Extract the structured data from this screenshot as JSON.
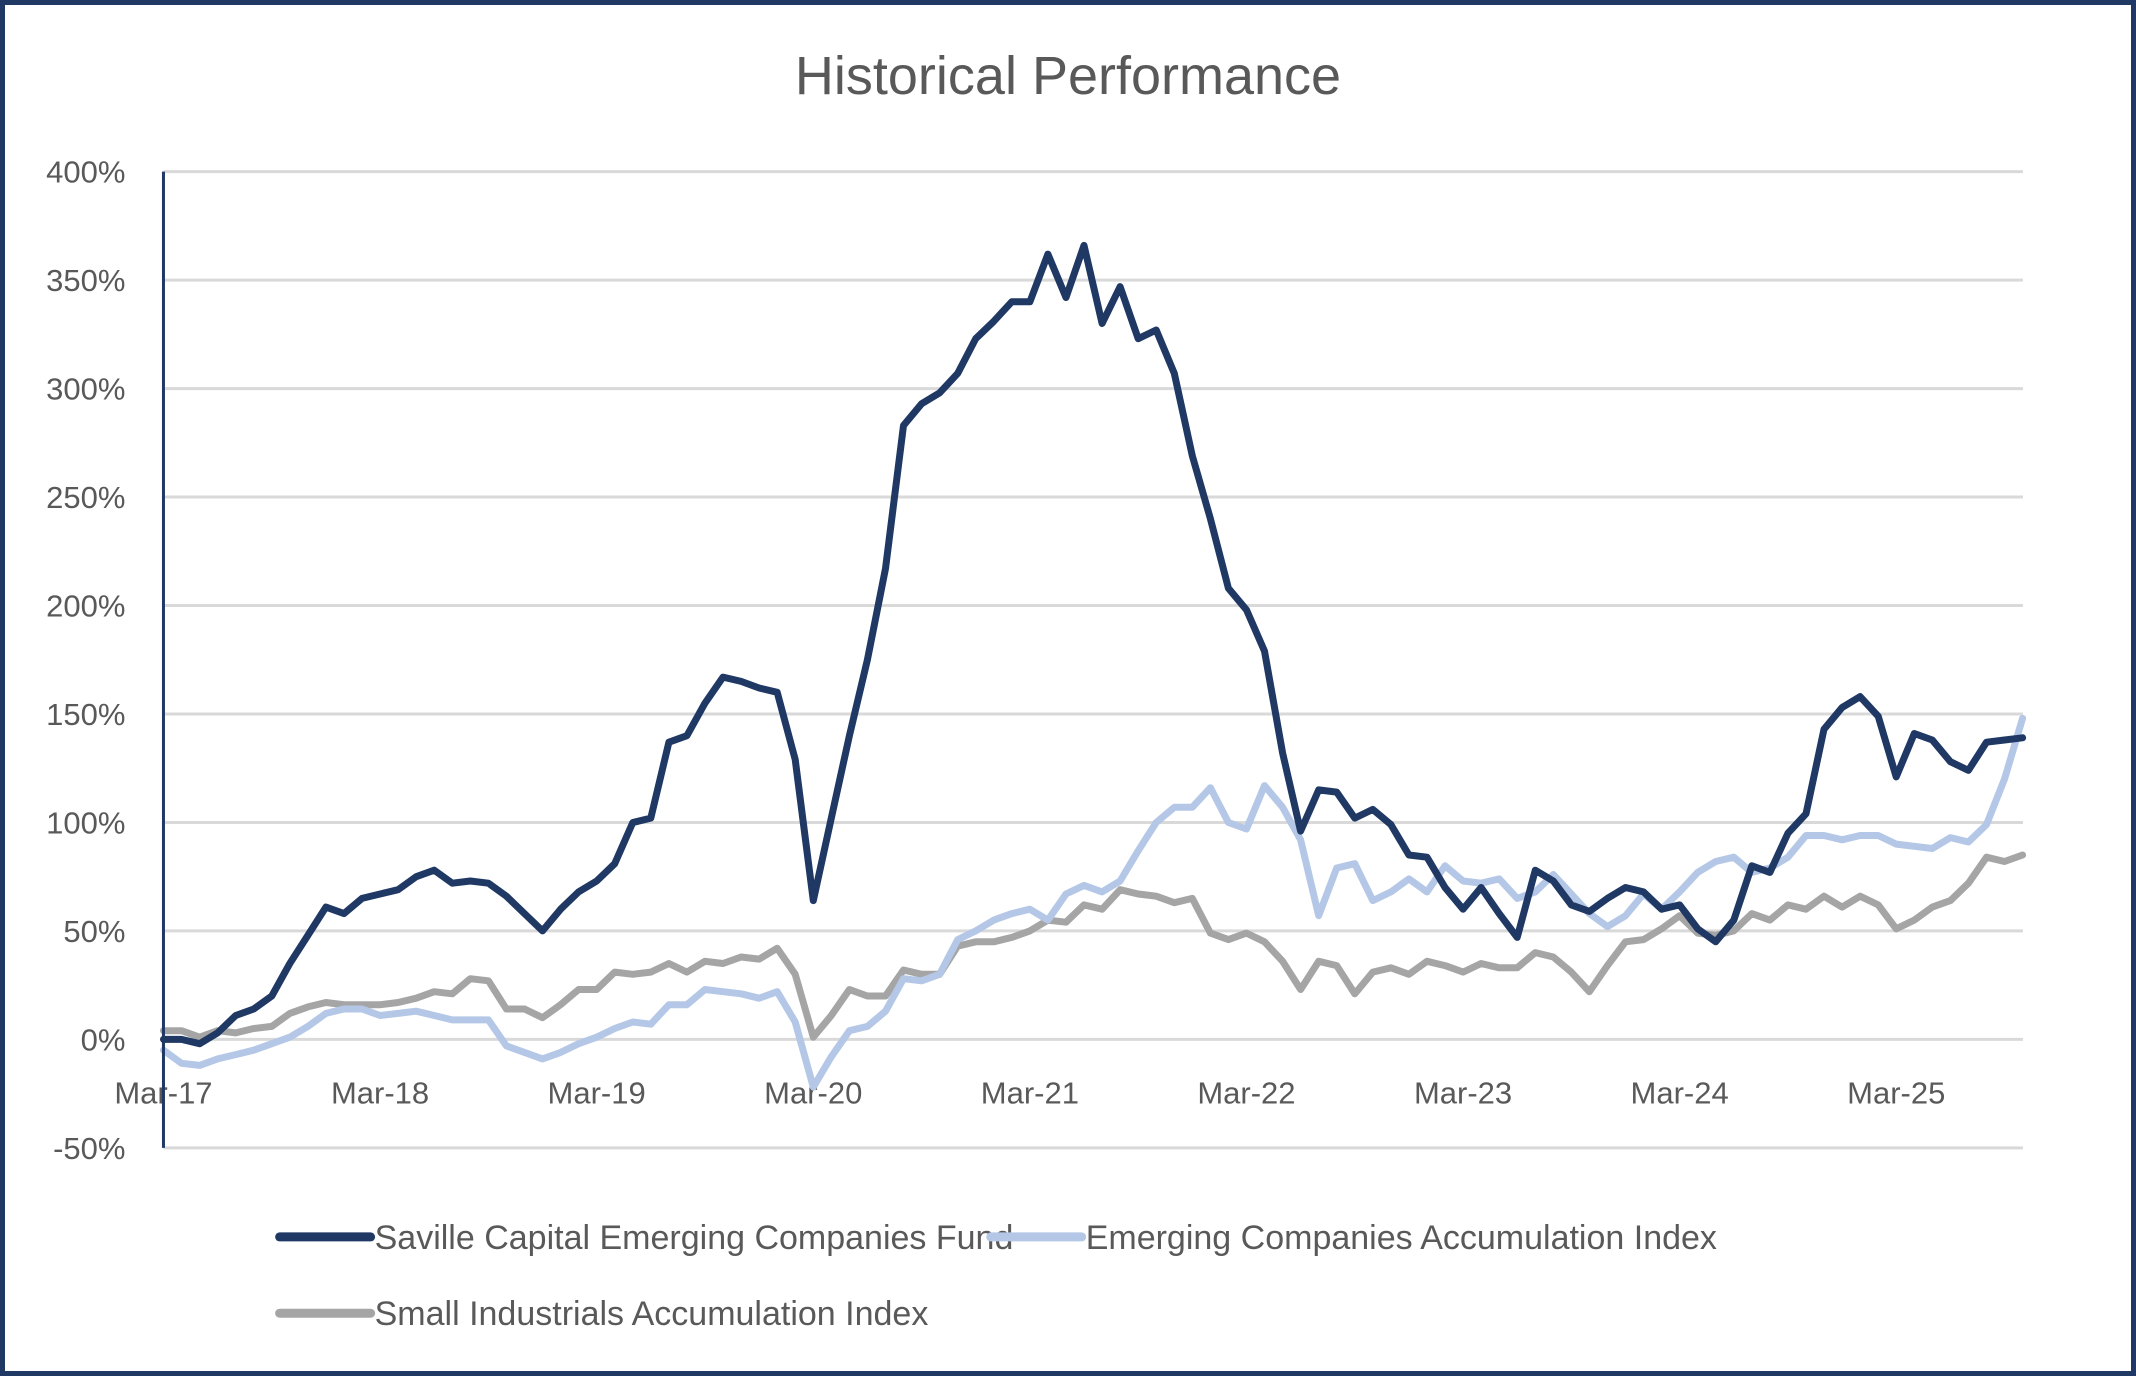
{
  "chart_data": {
    "type": "line",
    "title": "Historical Performance",
    "xlabel": "",
    "ylabel": "",
    "ylim": [
      -50,
      400
    ],
    "yticks": [
      -50,
      0,
      50,
      100,
      150,
      200,
      250,
      300,
      350,
      400
    ],
    "ytick_labels": [
      "-50%",
      "0%",
      "50%",
      "100%",
      "150%",
      "200%",
      "250%",
      "300%",
      "350%",
      "400%"
    ],
    "x_start": "Mar-17",
    "x_frequency": "monthly",
    "xtick_labels": [
      "Mar-17",
      "Mar-18",
      "Mar-19",
      "Mar-20",
      "Mar-21",
      "Mar-22",
      "Mar-23",
      "Mar-24",
      "Mar-25"
    ],
    "xtick_index_step": 12,
    "grid": true,
    "legend_position": "bottom",
    "series": [
      {
        "name": "Saville Capital Emerging Companies Fund",
        "color": "#1f3864",
        "values": [
          0,
          0,
          -2,
          3,
          11,
          14,
          20,
          35,
          48,
          61,
          58,
          65,
          67,
          69,
          75,
          78,
          72,
          73,
          72,
          66,
          58,
          50,
          60,
          68,
          73,
          81,
          100,
          102,
          137,
          140,
          155,
          167,
          165,
          162,
          160,
          129,
          64,
          102,
          140,
          175,
          217,
          283,
          293,
          298,
          307,
          323,
          331,
          340,
          340,
          362,
          342,
          366,
          330,
          347,
          323,
          327,
          307,
          269,
          240,
          208,
          198,
          179,
          132,
          96,
          115,
          114,
          102,
          106,
          99,
          85,
          84,
          70,
          60,
          70,
          58,
          47,
          78,
          73,
          62,
          59,
          65,
          70,
          68,
          60,
          62,
          51,
          45,
          55,
          80,
          77,
          95,
          104,
          143,
          153,
          158,
          149,
          121,
          141,
          138,
          128,
          124,
          137,
          138,
          139
        ]
      },
      {
        "name": "Emerging Companies Accumulation Index",
        "color": "#b4c7e7",
        "values": [
          -5,
          -11,
          -12,
          -9,
          -7,
          -5,
          -2,
          1,
          6,
          12,
          14,
          14,
          11,
          12,
          13,
          11,
          9,
          9,
          9,
          -3,
          -6,
          -9,
          -6,
          -2,
          1,
          5,
          8,
          7,
          16,
          16,
          23,
          22,
          21,
          19,
          22,
          8,
          -22,
          -8,
          4,
          6,
          13,
          28,
          27,
          30,
          46,
          50,
          55,
          58,
          60,
          55,
          67,
          71,
          68,
          73,
          87,
          100,
          107,
          107,
          116,
          100,
          97,
          117,
          107,
          92,
          57,
          79,
          81,
          64,
          68,
          74,
          68,
          80,
          73,
          72,
          74,
          65,
          68,
          76,
          67,
          58,
          52,
          57,
          67,
          60,
          68,
          77,
          82,
          84,
          77,
          79,
          84,
          94,
          94,
          92,
          94,
          94,
          90,
          89,
          88,
          93,
          91,
          99,
          120,
          148
        ]
      },
      {
        "name": "Small Industrials Accumulation Index",
        "color": "#a5a5a5",
        "values": [
          4,
          4,
          1,
          4,
          3,
          5,
          6,
          12,
          15,
          17,
          16,
          16,
          16,
          17,
          19,
          22,
          21,
          28,
          27,
          14,
          14,
          10,
          16,
          23,
          23,
          31,
          30,
          31,
          35,
          31,
          36,
          35,
          38,
          37,
          42,
          30,
          1,
          11,
          23,
          20,
          20,
          32,
          30,
          30,
          43,
          45,
          45,
          47,
          50,
          55,
          54,
          62,
          60,
          69,
          67,
          66,
          63,
          65,
          49,
          46,
          49,
          45,
          36,
          23,
          36,
          34,
          21,
          31,
          33,
          30,
          36,
          34,
          31,
          35,
          33,
          33,
          40,
          38,
          31,
          22,
          34,
          45,
          46,
          51,
          57,
          49,
          48,
          50,
          58,
          55,
          62,
          60,
          66,
          61,
          66,
          62,
          51,
          55,
          61,
          64,
          72,
          84,
          82,
          85
        ]
      }
    ]
  }
}
